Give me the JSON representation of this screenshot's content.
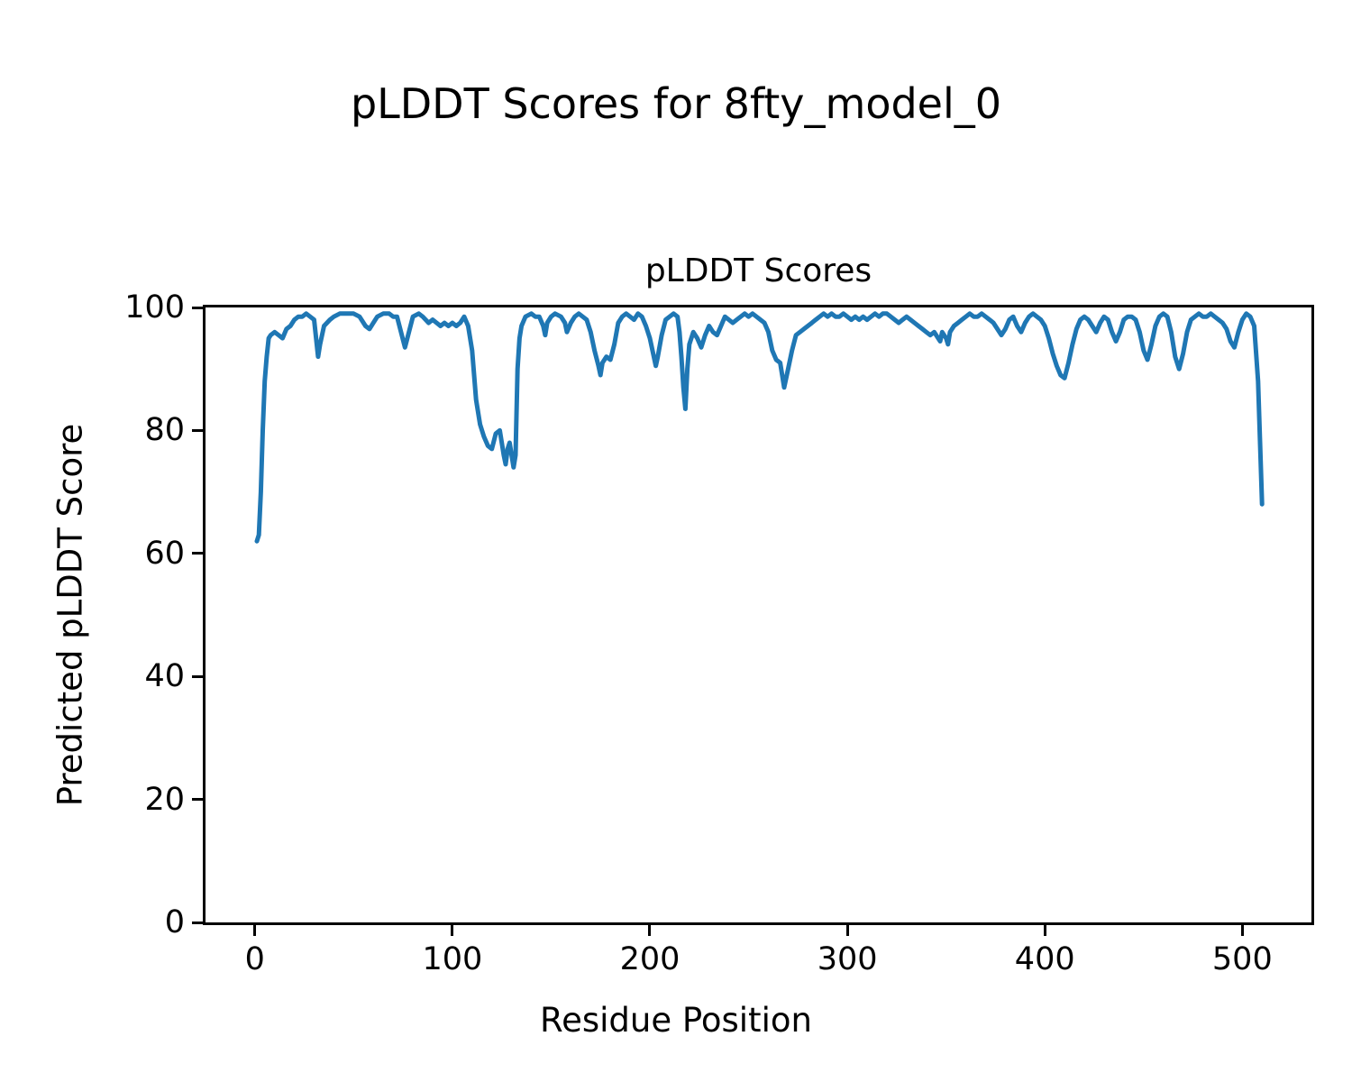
{
  "figure": {
    "suptitle": "pLDDT Scores for 8fty_model_0",
    "background_color": "#ffffff",
    "text_color": "#000000"
  },
  "chart_data": {
    "type": "line",
    "title": "pLDDT Scores",
    "xlabel": "Residue Position",
    "ylabel": "Predicted pLDDT Score",
    "series_name": "pLDDT",
    "line_color": "#1f77b4",
    "line_width": 5,
    "grid": false,
    "legend": "none",
    "xlim": [
      -25,
      535
    ],
    "ylim": [
      0,
      100
    ],
    "xticks": [
      0,
      100,
      200,
      300,
      400,
      500
    ],
    "yticks": [
      0,
      20,
      40,
      60,
      80,
      100
    ],
    "x": [
      1,
      2,
      3,
      4,
      5,
      6,
      7,
      8,
      10,
      12,
      14,
      16,
      18,
      20,
      22,
      24,
      26,
      28,
      30,
      31,
      32,
      33,
      35,
      38,
      40,
      43,
      46,
      50,
      53,
      56,
      58,
      60,
      62,
      65,
      68,
      70,
      72,
      74,
      76,
      78,
      80,
      83,
      85,
      88,
      90,
      92,
      94,
      96,
      98,
      100,
      102,
      104,
      106,
      108,
      110,
      112,
      114,
      116,
      118,
      120,
      122,
      124,
      125,
      126,
      127,
      128,
      129,
      130,
      131,
      132,
      133,
      134,
      135,
      137,
      140,
      142,
      144,
      146,
      147,
      148,
      150,
      152,
      155,
      157,
      158,
      160,
      162,
      164,
      166,
      168,
      170,
      172,
      174,
      175,
      176,
      178,
      180,
      182,
      184,
      186,
      188,
      190,
      192,
      194,
      196,
      198,
      200,
      202,
      203,
      204,
      206,
      208,
      210,
      212,
      214,
      215,
      216,
      217,
      218,
      219,
      220,
      222,
      224,
      226,
      228,
      230,
      232,
      234,
      236,
      238,
      240,
      242,
      244,
      246,
      248,
      250,
      252,
      254,
      256,
      258,
      260,
      262,
      264,
      266,
      267,
      268,
      270,
      272,
      274,
      276,
      278,
      280,
      282,
      284,
      286,
      288,
      290,
      292,
      294,
      296,
      298,
      300,
      302,
      304,
      306,
      308,
      310,
      312,
      314,
      316,
      318,
      320,
      322,
      324,
      326,
      328,
      330,
      332,
      334,
      336,
      338,
      340,
      342,
      344,
      346,
      347,
      348,
      350,
      351,
      352,
      354,
      356,
      358,
      360,
      362,
      364,
      366,
      368,
      370,
      372,
      374,
      376,
      378,
      380,
      382,
      384,
      386,
      388,
      390,
      392,
      394,
      396,
      398,
      400,
      402,
      404,
      406,
      408,
      410,
      412,
      414,
      416,
      418,
      420,
      422,
      424,
      426,
      428,
      430,
      432,
      434,
      436,
      438,
      440,
      442,
      444,
      446,
      448,
      450,
      452,
      454,
      456,
      458,
      460,
      462,
      464,
      466,
      468,
      470,
      472,
      474,
      476,
      478,
      480,
      482,
      484,
      486,
      488,
      490,
      492,
      494,
      496,
      498,
      500,
      502,
      504,
      506,
      508,
      509,
      510
    ],
    "y": [
      62,
      63,
      70,
      80,
      88,
      92,
      95,
      95.5,
      96,
      95.5,
      95,
      96.5,
      97,
      98,
      98.5,
      98.5,
      99,
      98.5,
      98,
      95,
      92,
      94,
      97,
      98,
      98.5,
      99,
      99,
      99,
      98.5,
      97,
      96.5,
      97.5,
      98.5,
      99,
      99,
      98.5,
      98.5,
      96,
      93.5,
      96,
      98.5,
      99,
      98.5,
      97.5,
      98,
      97.5,
      97,
      97.5,
      97,
      97.5,
      97,
      97.5,
      98.5,
      97,
      93,
      85,
      81,
      79,
      77.5,
      77,
      79.5,
      80,
      78,
      76,
      74.5,
      77,
      78,
      76,
      74,
      76,
      90,
      95,
      97,
      98.5,
      99,
      98.5,
      98.5,
      97,
      95.5,
      97.5,
      98.5,
      99,
      98.5,
      97.5,
      96,
      97.5,
      98.5,
      99,
      98.5,
      98,
      96,
      93,
      90.5,
      89,
      91,
      92,
      91.5,
      94,
      97.5,
      98.5,
      99,
      98.5,
      98,
      99,
      98.5,
      97,
      95,
      92,
      90.5,
      92,
      95.5,
      98,
      98.5,
      99,
      98.5,
      96,
      92,
      87,
      83.5,
      90,
      94,
      96,
      95,
      93.5,
      95.5,
      97,
      96,
      95.5,
      97,
      98.5,
      98,
      97.5,
      98,
      98.5,
      99,
      98.5,
      99,
      98.5,
      98,
      97.5,
      96,
      93,
      91.5,
      91,
      89,
      87,
      90,
      93,
      95.5,
      96,
      96.5,
      97,
      97.5,
      98,
      98.5,
      99,
      98.5,
      99,
      98.5,
      98.5,
      99,
      98.5,
      98,
      98.5,
      98,
      98.5,
      98,
      98.5,
      99,
      98.5,
      99,
      99,
      98.5,
      98,
      97.5,
      98,
      98.5,
      98,
      97.5,
      97,
      96.5,
      96,
      95.5,
      96,
      95,
      94.5,
      96,
      95,
      94,
      96,
      97,
      97.5,
      98,
      98.5,
      99,
      98.5,
      98.5,
      99,
      98.5,
      98,
      97.5,
      96.5,
      95.5,
      96.5,
      98,
      98.5,
      97,
      96,
      97.5,
      98.5,
      99,
      98.5,
      98,
      97,
      95,
      92.5,
      90.5,
      89,
      88.5,
      91,
      94,
      96.5,
      98,
      98.5,
      98,
      97,
      96,
      97.5,
      98.5,
      98,
      96,
      94.5,
      96,
      98,
      98.5,
      98.5,
      98,
      96,
      93,
      91.5,
      94,
      97,
      98.5,
      99,
      98.5,
      96,
      92,
      90,
      92.5,
      96,
      98,
      98.5,
      99,
      98.5,
      98.5,
      99,
      98.5,
      98,
      97.5,
      96.5,
      94.5,
      93.5,
      96,
      98,
      99,
      98.5,
      97,
      88,
      78,
      68
    ]
  }
}
